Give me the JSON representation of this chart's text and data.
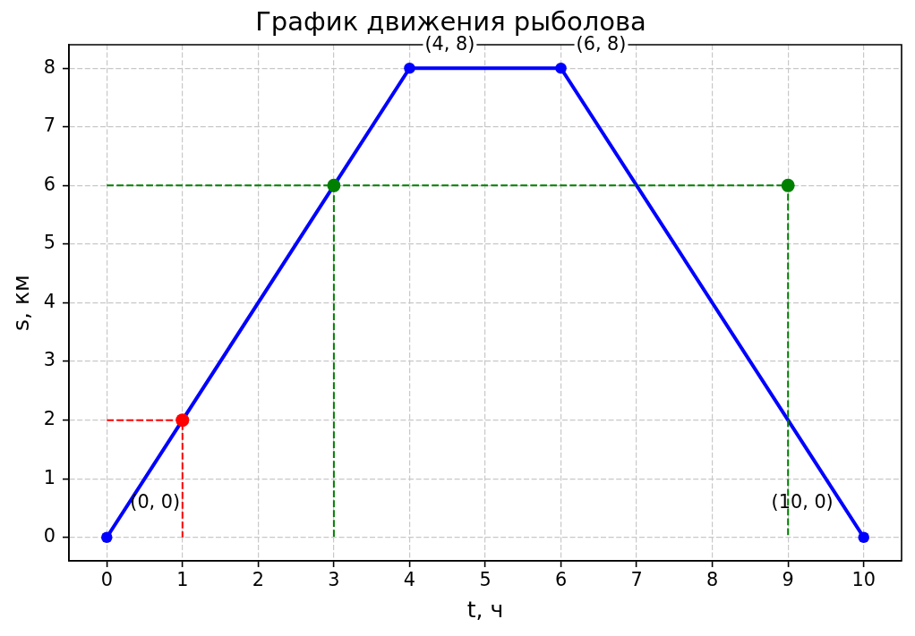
{
  "chart_data": {
    "type": "line",
    "title": "График движения рыболова",
    "xlabel": "t, ч",
    "ylabel": "s, км",
    "xlim": [
      -0.5,
      10.5
    ],
    "xticks": [
      0,
      1,
      2,
      3,
      4,
      5,
      6,
      7,
      8,
      9,
      10
    ],
    "ylim": [
      -0.4,
      8.4
    ],
    "yticks": [
      0,
      1,
      2,
      3,
      4,
      5,
      6,
      7,
      8
    ],
    "grid": true,
    "series": [
      {
        "type": "line",
        "color": "#0000ff",
        "x": [
          0,
          4,
          6,
          10
        ],
        "values": [
          0,
          8,
          8,
          0
        ],
        "marker": "circle",
        "line_style": "solid"
      },
      {
        "type": "line",
        "color": "#ff0000",
        "x": [
          0,
          1,
          1
        ],
        "values": [
          2,
          2,
          0
        ],
        "marker": "none",
        "line_style": "dashed"
      },
      {
        "type": "line",
        "color": "#008000",
        "x": [
          0,
          9,
          9
        ],
        "values": [
          6,
          6,
          0
        ],
        "marker": "none",
        "line_style": "dashed"
      },
      {
        "type": "line",
        "color": "#008000",
        "x": [
          3,
          3
        ],
        "values": [
          6,
          0
        ],
        "marker": "none",
        "line_style": "dashed"
      },
      {
        "type": "scatter",
        "color": "#ff0000",
        "x": [
          1
        ],
        "values": [
          2
        ],
        "marker": "circle"
      },
      {
        "type": "scatter",
        "color": "#008000",
        "x": [
          3,
          9
        ],
        "values": [
          6,
          6
        ],
        "marker": "circle"
      }
    ],
    "annotations": [
      {
        "text": "(0, 0)",
        "x": 0,
        "y": 0
      },
      {
        "text": "(4, 8)",
        "x": 4,
        "y": 8
      },
      {
        "text": "(6, 8)",
        "x": 6,
        "y": 8
      },
      {
        "text": "(10, 0)",
        "x": 10,
        "y": 0
      }
    ]
  }
}
